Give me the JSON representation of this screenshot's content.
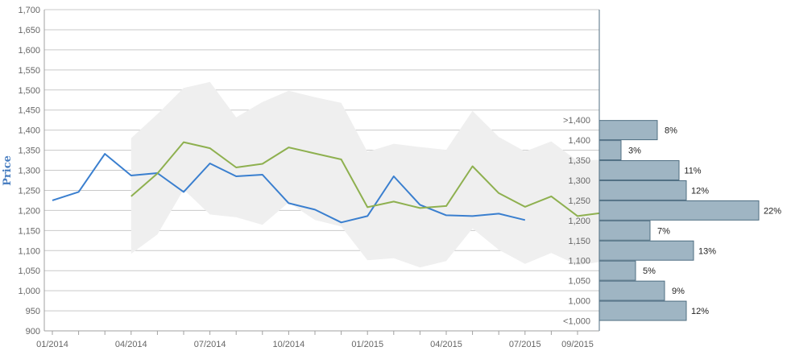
{
  "chart_data": {
    "type": "line",
    "ylabel": "Price",
    "ylim": [
      900,
      1700
    ],
    "y_ticks": [
      900,
      950,
      1000,
      1050,
      1100,
      1150,
      1200,
      1250,
      1300,
      1350,
      1400,
      1450,
      1500,
      1550,
      1600,
      1650,
      1700
    ],
    "y_tick_labels": [
      "900",
      "950",
      "1,000",
      "1,050",
      "1,100",
      "1,150",
      "1,200",
      "1,250",
      "1,300",
      "1,350",
      "1,400",
      "1,450",
      "1,500",
      "1,550",
      "1,600",
      "1,650",
      "1,700"
    ],
    "x_tick_labels": [
      "01/2014",
      "04/2014",
      "07/2014",
      "10/2014",
      "01/2015",
      "04/2015",
      "07/2015",
      "09/2015"
    ],
    "x_tick_dates": [
      "2014-01",
      "2014-04",
      "2014-07",
      "2014-10",
      "2015-01",
      "2015-04",
      "2015-07",
      "2015-09"
    ],
    "grid": true,
    "colors": {
      "series_blue": "#3a7fcf",
      "series_green": "#8eb04f",
      "band": "#efefef",
      "histogram_fill": "#9fb5c3",
      "histogram_stroke": "#4f6e82",
      "grid": "#c9c9c9"
    },
    "series": [
      {
        "color": "#3a7fcf",
        "dates": [
          "2014-01",
          "2014-02",
          "2014-03",
          "2014-04",
          "2014-05",
          "2014-06",
          "2014-07",
          "2014-08",
          "2014-09",
          "2014-10",
          "2014-11",
          "2014-12",
          "2015-01",
          "2015-02",
          "2015-03",
          "2015-04",
          "2015-05",
          "2015-06",
          "2015-07"
        ],
        "values": [
          1225,
          1246,
          1341,
          1287,
          1293,
          1246,
          1317,
          1285,
          1289,
          1218,
          1202,
          1170,
          1186,
          1285,
          1214,
          1188,
          1186,
          1192,
          1176
        ]
      },
      {
        "color": "#8eb04f",
        "dates": [
          "2014-04",
          "2014-05",
          "2014-06",
          "2014-07",
          "2014-08",
          "2014-09",
          "2014-10",
          "2014-11",
          "2014-12",
          "2015-01",
          "2015-02",
          "2015-03",
          "2015-04",
          "2015-05",
          "2015-06",
          "2015-07",
          "2015-08",
          "2015-09",
          "2015-10"
        ],
        "values": [
          1235,
          1292,
          1370,
          1355,
          1307,
          1316,
          1357,
          1342,
          1327,
          1208,
          1222,
          1206,
          1211,
          1310,
          1243,
          1209,
          1235,
          1186,
          1193
        ]
      }
    ],
    "range_band": {
      "dates": [
        "2014-04",
        "2014-05",
        "2014-06",
        "2014-07",
        "2014-08",
        "2014-09",
        "2014-10",
        "2014-11",
        "2014-12",
        "2015-01",
        "2015-02",
        "2015-03",
        "2015-04",
        "2015-05",
        "2015-06",
        "2015-07",
        "2015-08",
        "2015-09",
        "2015-10"
      ],
      "upper": [
        1380,
        1440,
        1505,
        1520,
        1432,
        1470,
        1498,
        1482,
        1468,
        1346,
        1366,
        1358,
        1351,
        1448,
        1383,
        1347,
        1372,
        1323,
        1327
      ],
      "lower": [
        1092,
        1140,
        1252,
        1190,
        1183,
        1164,
        1220,
        1176,
        1160,
        1076,
        1081,
        1058,
        1074,
        1155,
        1102,
        1067,
        1094,
        1064,
        1073
      ]
    },
    "histogram": {
      "bins": [
        ">1,400",
        "1,400",
        "1,350",
        "1,300",
        "1,250",
        "1,200",
        "1,150",
        "1,100",
        "1,050",
        "1,000",
        "<1,000"
      ],
      "percents": [
        8,
        3,
        11,
        12,
        22,
        7,
        13,
        5,
        9,
        12
      ],
      "labels": [
        "8%",
        "3%",
        "11%",
        "12%",
        "22%",
        "7%",
        "13%",
        "5%",
        "9%",
        "12%"
      ]
    }
  }
}
